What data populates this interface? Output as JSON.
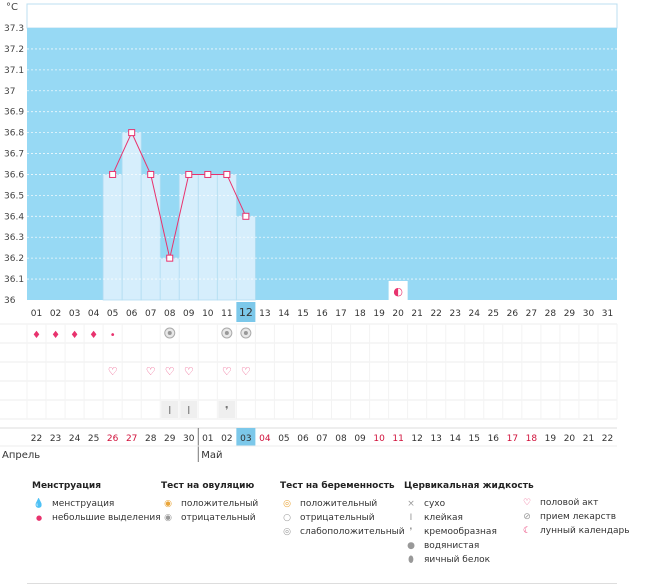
{
  "chart_data": {
    "type": "bar",
    "unit_label": "°C",
    "ylim": [
      36,
      37.3
    ],
    "y_ticks": [
      "36",
      "36.1",
      "36.2",
      "36.3",
      "36.4",
      "36.5",
      "36.6",
      "36.7",
      "36.8",
      "36.9",
      "37",
      "37.1",
      "37.2",
      "37.3"
    ],
    "cycle_days": [
      "01",
      "02",
      "03",
      "04",
      "05",
      "06",
      "07",
      "08",
      "09",
      "10",
      "11",
      "12",
      "13",
      "14",
      "15",
      "16",
      "17",
      "18",
      "19",
      "20",
      "21",
      "22",
      "23",
      "24",
      "25",
      "26",
      "27",
      "28",
      "29",
      "30",
      "31"
    ],
    "highlighted_cycle_day": "12",
    "temperatures": [
      null,
      null,
      null,
      null,
      36.6,
      36.8,
      36.6,
      36.2,
      36.6,
      36.6,
      36.6,
      36.4,
      null,
      null,
      null,
      null,
      null,
      null,
      null,
      null,
      null,
      null,
      null,
      null,
      null,
      null,
      null,
      null,
      null,
      null,
      null
    ],
    "moon_day": "20",
    "dates": [
      "22",
      "23",
      "24",
      "25",
      "26",
      "27",
      "28",
      "29",
      "30",
      "01",
      "02",
      "03",
      "04",
      "05",
      "06",
      "07",
      "08",
      "09",
      "10",
      "11",
      "12",
      "13",
      "14",
      "15",
      "16",
      "17",
      "18",
      "19",
      "20",
      "21",
      "22"
    ],
    "red_dates_idx": [
      4,
      5,
      12,
      18,
      19,
      25,
      26
    ],
    "highlighted_date_idx": 11,
    "month_boundary_idx": 9,
    "months": [
      "Апрель",
      "Май"
    ],
    "rows": {
      "menstruation": [
        3,
        3,
        3,
        2,
        1,
        0,
        0,
        0,
        0,
        0,
        0,
        0,
        0,
        0,
        0,
        0,
        0,
        0,
        0,
        0,
        0,
        0,
        0,
        0,
        0,
        0,
        0,
        0,
        0,
        0,
        0
      ],
      "ovulation_negative": [
        0,
        0,
        0,
        0,
        0,
        0,
        0,
        1,
        0,
        0,
        1,
        1,
        0,
        0,
        0,
        0,
        0,
        0,
        0,
        0,
        0,
        0,
        0,
        0,
        0,
        0,
        0,
        0,
        0,
        0,
        0
      ],
      "intercourse": [
        0,
        0,
        0,
        0,
        1,
        0,
        1,
        1,
        1,
        0,
        1,
        1,
        0,
        0,
        0,
        0,
        0,
        0,
        0,
        0,
        0,
        0,
        0,
        0,
        0,
        0,
        0,
        0,
        0,
        0,
        0
      ],
      "cervical": [
        "",
        "",
        "",
        "",
        "",
        "",
        "",
        "sticky",
        "sticky",
        "",
        "creamy",
        "",
        "",
        "",
        "",
        "",
        "",
        "",
        "",
        "",
        "",
        "",
        "",
        "",
        "",
        "",
        "",
        "",
        "",
        "",
        ""
      ]
    }
  },
  "legend": {
    "menstruation": {
      "title": "Менструация",
      "items": [
        "менструация",
        "небольшие выделения"
      ]
    },
    "ovulation": {
      "title": "Тест на овуляцию",
      "items": [
        "положительный",
        "отрицательный"
      ]
    },
    "pregnancy": {
      "title": "Тест на беременность",
      "items": [
        "положительный",
        "отрицательный",
        "слабоположительный"
      ]
    },
    "cervical": {
      "title": "Цервикальная жидкость",
      "items": [
        "сухо",
        "клейкая",
        "кремообразная",
        "водянистая",
        "яичный белок"
      ]
    },
    "other": {
      "items": [
        "половой акт",
        "прием лекарств",
        "лунный календарь"
      ]
    }
  },
  "colors": {
    "plot_bg": "#97d9f4",
    "bar": "#d6eefc",
    "line": "#e8336e",
    "accent": "#e8336e",
    "highlight": "#7cc8ea"
  }
}
